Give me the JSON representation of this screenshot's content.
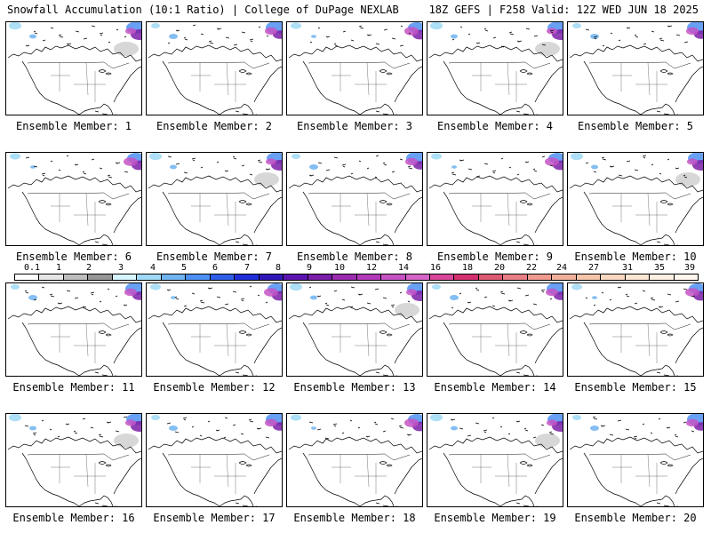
{
  "header": {
    "title_left": "Snowfall Accumulation (10:1 Ratio) | College of DuPage NEXLAB",
    "title_right": "18Z GEFS | F258 Valid: 12Z WED JUN 18 2025"
  },
  "panels": [
    {
      "label": "Ensemble Member: 1"
    },
    {
      "label": "Ensemble Member: 2"
    },
    {
      "label": "Ensemble Member: 3"
    },
    {
      "label": "Ensemble Member: 4"
    },
    {
      "label": "Ensemble Member: 5"
    },
    {
      "label": "Ensemble Member: 6"
    },
    {
      "label": "Ensemble Member: 7"
    },
    {
      "label": "Ensemble Member: 8"
    },
    {
      "label": "Ensemble Member: 9"
    },
    {
      "label": "Ensemble Member: 10"
    },
    {
      "label": "Ensemble Member: 11"
    },
    {
      "label": "Ensemble Member: 12"
    },
    {
      "label": "Ensemble Member: 13"
    },
    {
      "label": "Ensemble Member: 14"
    },
    {
      "label": "Ensemble Member: 15"
    },
    {
      "label": "Ensemble Member: 16"
    },
    {
      "label": "Ensemble Member: 17"
    },
    {
      "label": "Ensemble Member: 18"
    },
    {
      "label": "Ensemble Member: 19"
    },
    {
      "label": "Ensemble Member: 20"
    }
  ],
  "colorbar": {
    "labels": [
      "0.1",
      "1",
      "2",
      "3",
      "4",
      "5",
      "6",
      "7",
      "8",
      "9",
      "10",
      "12",
      "14",
      "16",
      "18",
      "20",
      "22",
      "24",
      "27",
      "31",
      "35",
      "39"
    ],
    "colors": [
      "#ffffff",
      "#e6e6e6",
      "#bdbdbd",
      "#969696",
      "#d6f5ff",
      "#9fd9f5",
      "#6fb3f0",
      "#4d8ff2",
      "#2f5fe8",
      "#1f2fd8",
      "#3018b8",
      "#5b14b0",
      "#7b1ea8",
      "#9a2cae",
      "#b23ab8",
      "#c653c4",
      "#d465c7",
      "#d9479b",
      "#d4306f",
      "#dd5a73",
      "#e87f86",
      "#ee9a8f",
      "#f1b09a",
      "#f5c5ab",
      "#f8d8c0",
      "#fbe6d2",
      "#fdf0e2",
      "#fff7ee"
    ]
  }
}
